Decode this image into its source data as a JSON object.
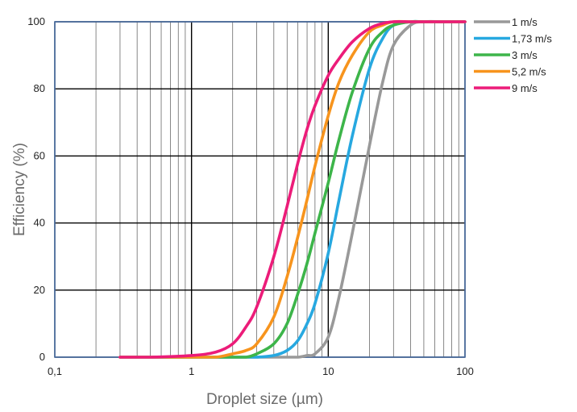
{
  "chart_data": {
    "type": "line",
    "title": "",
    "xlabel": "Droplet size (µm)",
    "ylabel": "Efficiency (%)",
    "x_scale": "log",
    "xlim": [
      0.1,
      100
    ],
    "ylim": [
      0,
      100
    ],
    "x_ticks": [
      0.1,
      1,
      10,
      100
    ],
    "x_tick_labels": [
      "0,1",
      "1",
      "10",
      "100"
    ],
    "y_ticks": [
      0,
      20,
      40,
      60,
      80,
      100
    ],
    "y_tick_labels": [
      "0",
      "20",
      "40",
      "60",
      "80",
      "100"
    ],
    "grid": true,
    "legend_position": "right",
    "x": [
      0.3,
      0.5,
      1,
      1.5,
      2,
      2.5,
      3,
      4,
      5,
      6,
      7,
      8,
      10,
      12,
      15,
      20,
      25,
      30,
      40,
      50,
      70,
      100
    ],
    "series": [
      {
        "name": "1 m/s",
        "color": "#999999",
        "values": [
          0,
          0,
          0,
          0,
          0,
          0,
          0,
          0,
          0,
          0,
          0.5,
          1,
          6,
          18,
          37,
          63,
          82,
          93,
          99,
          100,
          100,
          100
        ]
      },
      {
        "name": "1,73 m/s",
        "color": "#27a8e0",
        "values": [
          0,
          0,
          0,
          0,
          0,
          0,
          0,
          0.5,
          2,
          5,
          10,
          16,
          31,
          47,
          66,
          86,
          95,
          99,
          100,
          100,
          100,
          100
        ]
      },
      {
        "name": "3 m/s",
        "color": "#3db54a",
        "values": [
          0,
          0,
          0,
          0,
          0,
          0,
          1,
          4,
          10,
          19,
          28,
          37,
          52,
          65,
          79,
          92,
          97,
          99,
          100,
          100,
          100,
          100
        ]
      },
      {
        "name": "5,2 m/s",
        "color": "#f7941d",
        "values": [
          0,
          0,
          0,
          0,
          1,
          2,
          4,
          12,
          24,
          36,
          47,
          57,
          72,
          82,
          90,
          97,
          99,
          100,
          100,
          100,
          100,
          100
        ]
      },
      {
        "name": "9 m/s",
        "color": "#ec1c79",
        "values": [
          0,
          0,
          0.5,
          1.5,
          4,
          9,
          15,
          30,
          45,
          58,
          68,
          75,
          84,
          89,
          94,
          98,
          99.5,
          100,
          100,
          100,
          100,
          100
        ]
      }
    ]
  }
}
